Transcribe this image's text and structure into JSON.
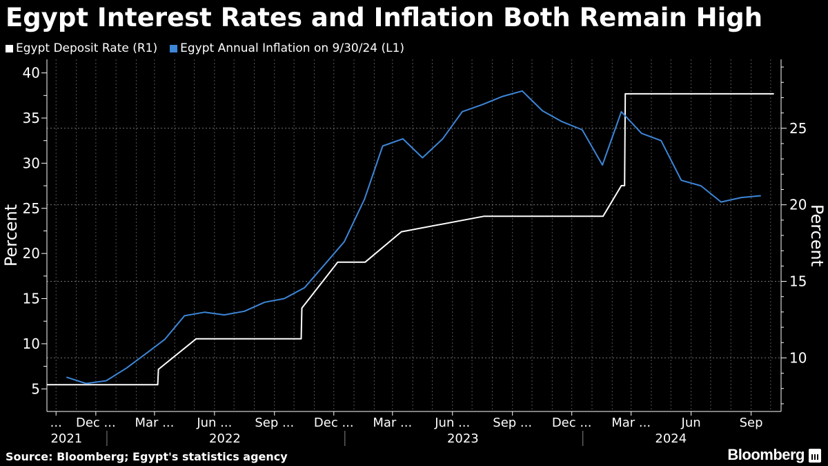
{
  "chart_data": {
    "type": "line",
    "title": "Egypt Interest Rates and Inflation Both Remain High",
    "ylabel_left": "Percent",
    "ylabel_right": "Percent",
    "ylim_left": [
      2.5,
      41.5
    ],
    "ylim_right": [
      6.5,
      29.5
    ],
    "yticks_left": [
      5,
      10,
      15,
      20,
      25,
      30,
      35,
      40
    ],
    "yticks_right": [
      10,
      15,
      20,
      25
    ],
    "x_start": "2021-10-01",
    "x_end": "2024-10-31",
    "xtick_labels": [
      {
        "date": "2021-10-15",
        "label": "..."
      },
      {
        "date": "2021-12-15",
        "label": "Dec ..."
      },
      {
        "date": "2022-03-15",
        "label": "Mar ..."
      },
      {
        "date": "2022-06-15",
        "label": "Jun ..."
      },
      {
        "date": "2022-09-15",
        "label": "Sep ..."
      },
      {
        "date": "2022-12-15",
        "label": "Dec ..."
      },
      {
        "date": "2023-03-15",
        "label": "Mar ..."
      },
      {
        "date": "2023-06-15",
        "label": "Jun ..."
      },
      {
        "date": "2023-09-15",
        "label": "Sep ..."
      },
      {
        "date": "2023-12-15",
        "label": "Dec ..."
      },
      {
        "date": "2024-03-15",
        "label": "Mar ..."
      },
      {
        "date": "2024-06-15",
        "label": "Jun"
      },
      {
        "date": "2024-09-15",
        "label": "Sep"
      }
    ],
    "year_labels": [
      {
        "date": "2021-10-31",
        "label": "2021"
      },
      {
        "date": "2022-07-01",
        "label": "2022"
      },
      {
        "date": "2023-07-01",
        "label": "2023"
      },
      {
        "date": "2024-05-15",
        "label": "2024"
      }
    ],
    "year_dividers": [
      "2022-01-01",
      "2023-01-01",
      "2024-01-01"
    ],
    "series": [
      {
        "name": "Egypt Deposit Rate (R1)",
        "axis": "right",
        "color": "#ffffff",
        "x": [
          "2021-10-01",
          "2022-03-20",
          "2022-03-21",
          "2022-05-18",
          "2022-05-19",
          "2022-10-26",
          "2022-10-27",
          "2022-12-21",
          "2022-12-22",
          "2023-02-01",
          "2023-03-29",
          "2023-03-30",
          "2023-08-02",
          "2023-08-03",
          "2024-02-01",
          "2024-02-29",
          "2024-03-05",
          "2024-03-06",
          "2024-10-20"
        ],
        "values": [
          8.25,
          8.25,
          9.25,
          11.25,
          11.25,
          11.25,
          13.25,
          16.25,
          16.25,
          16.25,
          18.25,
          18.25,
          19.25,
          19.25,
          19.25,
          21.25,
          21.25,
          27.25,
          27.25
        ]
      },
      {
        "name": "Egypt Annual Inflation on 9/30/24 (L1)",
        "axis": "left",
        "color": "#3d86d8",
        "x": [
          "2021-10-31",
          "2021-11-30",
          "2021-12-31",
          "2022-01-31",
          "2022-02-28",
          "2022-03-31",
          "2022-04-30",
          "2022-05-31",
          "2022-06-30",
          "2022-07-31",
          "2022-08-31",
          "2022-09-30",
          "2022-10-31",
          "2022-11-30",
          "2022-12-31",
          "2023-01-31",
          "2023-02-28",
          "2023-03-31",
          "2023-04-30",
          "2023-05-31",
          "2023-06-30",
          "2023-07-31",
          "2023-08-31",
          "2023-09-30",
          "2023-10-31",
          "2023-11-30",
          "2023-12-31",
          "2024-01-31",
          "2024-02-29",
          "2024-03-31",
          "2024-04-30",
          "2024-05-31",
          "2024-06-30",
          "2024-07-31",
          "2024-08-31",
          "2024-09-30"
        ],
        "values": [
          6.3,
          5.6,
          5.9,
          7.3,
          8.8,
          10.5,
          13.1,
          13.5,
          13.2,
          13.6,
          14.6,
          15.0,
          16.2,
          18.7,
          21.3,
          26.0,
          31.9,
          32.7,
          30.6,
          32.7,
          35.7,
          36.5,
          37.4,
          38.0,
          35.8,
          34.6,
          33.7,
          29.8,
          35.7,
          33.3,
          32.5,
          28.1,
          27.5,
          25.7,
          26.2,
          26.4
        ]
      }
    ]
  },
  "legend": [
    {
      "label": "Egypt Deposit Rate (R1)",
      "color": "#ffffff"
    },
    {
      "label": "Egypt Annual Inflation on 9/30/24 (L1)",
      "color": "#3d86d8"
    }
  ],
  "source": "Source: Bloomberg; Egypt's statistics agency",
  "brand": "Bloomberg"
}
